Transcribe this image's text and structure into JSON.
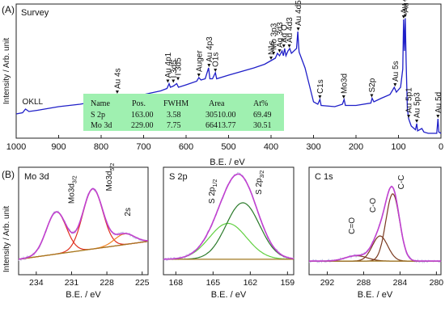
{
  "colors": {
    "survey": "#1f1fc8",
    "envelope": "#c040d0",
    "raw": "#c8c8e8",
    "baseline": "#a07820",
    "red": "#e03020",
    "orange": "#f08020",
    "darkgreen": "#2a7a2a",
    "lightgreen": "#60d040",
    "brown": "#7a3a20",
    "table_bg": "#9ff0b0"
  },
  "chart_data": [
    {
      "id": "A",
      "type": "line",
      "panel_label": "(A)",
      "title": "Survey",
      "xlabel": "B.E. / eV",
      "ylabel": "Intensity / Arb. unit",
      "xlim": [
        1000,
        0
      ],
      "xticks": [
        "1000",
        "900",
        "800",
        "700",
        "600",
        "500",
        "400",
        "300",
        "200",
        "100",
        "0"
      ],
      "series": [
        {
          "points": [
            [
              1000,
              0.18
            ],
            [
              985,
              0.19
            ],
            [
              978,
              0.22
            ],
            [
              970,
              0.2
            ],
            [
              950,
              0.21
            ],
            [
              900,
              0.24
            ],
            [
              850,
              0.26
            ],
            [
              800,
              0.29
            ],
            [
              770,
              0.3
            ],
            [
              762,
              0.34
            ],
            [
              755,
              0.31
            ],
            [
              700,
              0.34
            ],
            [
              660,
              0.37
            ],
            [
              645,
              0.39
            ],
            [
              640,
              0.43
            ],
            [
              637,
              0.4
            ],
            [
              630,
              0.41
            ],
            [
              622,
              0.43
            ],
            [
              618,
              0.4
            ],
            [
              600,
              0.42
            ],
            [
              575,
              0.45
            ],
            [
              570,
              0.48
            ],
            [
              565,
              0.46
            ],
            [
              555,
              0.47
            ],
            [
              547,
              0.56
            ],
            [
              544,
              0.47
            ],
            [
              538,
              0.47
            ],
            [
              531,
              0.52
            ],
            [
              528,
              0.47
            ],
            [
              500,
              0.5
            ],
            [
              470,
              0.53
            ],
            [
              440,
              0.56
            ],
            [
              415,
              0.59
            ],
            [
              400,
              0.62
            ],
            [
              390,
              0.64
            ],
            [
              385,
              0.68
            ],
            [
              380,
              0.66
            ],
            [
              374,
              0.7
            ],
            [
              371,
              0.66
            ],
            [
              368,
              0.72
            ],
            [
              365,
              0.66
            ],
            [
              360,
              0.7
            ],
            [
              356,
              0.72
            ],
            [
              352,
              0.68
            ],
            [
              340,
              0.72
            ],
            [
              337,
              0.86
            ],
            [
              335,
              0.74
            ],
            [
              334,
              0.69
            ],
            [
              320,
              0.56
            ],
            [
              300,
              0.28
            ],
            [
              290,
              0.26
            ],
            [
              285,
              0.3
            ],
            [
              282,
              0.25
            ],
            [
              250,
              0.24
            ],
            [
              232,
              0.26
            ],
            [
              228,
              0.3
            ],
            [
              225,
              0.25
            ],
            [
              200,
              0.25
            ],
            [
              165,
              0.27
            ],
            [
              162,
              0.31
            ],
            [
              158,
              0.28
            ],
            [
              140,
              0.31
            ],
            [
              120,
              0.34
            ],
            [
              110,
              0.4
            ],
            [
              105,
              0.36
            ],
            [
              95,
              0.4
            ],
            [
              90,
              0.55
            ],
            [
              88,
              0.96
            ],
            [
              86,
              0.7
            ],
            [
              84,
              0.97
            ],
            [
              82,
              0.6
            ],
            [
              79,
              0.22
            ],
            [
              76,
              0.14
            ],
            [
              72,
              0.1
            ],
            [
              70,
              0.08
            ],
            [
              60,
              0.05
            ],
            [
              57,
              0.1
            ],
            [
              55,
              0.04
            ],
            [
              45,
              0.06
            ],
            [
              40,
              0.03
            ],
            [
              30,
              0.02
            ],
            [
              20,
              0.02
            ],
            [
              10,
              0.02
            ],
            [
              7,
              0.14
            ],
            [
              5,
              0.03
            ],
            [
              0,
              0.02
            ]
          ]
        }
      ],
      "peak_labels": [
        {
          "text": "OKLL",
          "x": 978,
          "h": 0.22,
          "rotate": false
        },
        {
          "text": "Au 4s",
          "x": 762,
          "h": 0.34,
          "rotate": true
        },
        {
          "text": "Au 4p1",
          "x": 643,
          "h": 0.43,
          "rotate": true
        },
        {
          "text": "I 3d5",
          "x": 630,
          "h": 0.43,
          "rotate": true
        },
        {
          "text": "I 3d5",
          "x": 619,
          "h": 0.45,
          "rotate": true
        },
        {
          "text": "Auger",
          "x": 570,
          "h": 0.48,
          "rotate": true
        },
        {
          "text": "Au 4p3",
          "x": 546,
          "h": 0.56,
          "rotate": true
        },
        {
          "text": "O1s",
          "x": 531,
          "h": 0.52,
          "rotate": true
        },
        {
          "text": "N1s",
          "x": 400,
          "h": 0.62,
          "rotate": true
        },
        {
          "text": "Mo 3p3",
          "x": 394,
          "h": 0.66,
          "rotate": true
        },
        {
          "text": "Ag 3d3",
          "x": 380,
          "h": 0.68,
          "rotate": true
        },
        {
          "text": "Ag O",
          "x": 370,
          "h": 0.72,
          "rotate": true
        },
        {
          "text": "Au 4d3",
          "x": 357,
          "h": 0.72,
          "rotate": true
        },
        {
          "text": "Au 4d5",
          "x": 336,
          "h": 0.86,
          "rotate": true
        },
        {
          "text": "C1s",
          "x": 285,
          "h": 0.3,
          "rotate": true
        },
        {
          "text": "Mo3d",
          "x": 229,
          "h": 0.3,
          "rotate": true
        },
        {
          "text": "S2p",
          "x": 163,
          "h": 0.31,
          "rotate": true
        },
        {
          "text": "Au 5s",
          "x": 108,
          "h": 0.4,
          "rotate": true
        },
        {
          "text": "Au 4f5",
          "x": 88,
          "h": 0.96,
          "rotate": true
        },
        {
          "text": "Au 4f7",
          "x": 84,
          "h": 0.97,
          "rotate": true
        },
        {
          "text": "Au 5p1",
          "x": 76,
          "h": 0.14,
          "rotate": true
        },
        {
          "text": "Au 5p3",
          "x": 57,
          "h": 0.1,
          "rotate": true
        },
        {
          "text": "Au 5d",
          "x": 7,
          "h": 0.14,
          "rotate": true
        }
      ],
      "table": {
        "columns": [
          "Name",
          "Pos.",
          "FWHM",
          "Area",
          "At%"
        ],
        "rows": [
          [
            "S 2p",
            "163.00",
            "3.58",
            "30510.00",
            "69.49"
          ],
          [
            "Mo 3d",
            "229.00",
            "7.75",
            "66413.77",
            "30.51"
          ]
        ]
      }
    },
    {
      "id": "B1",
      "type": "line",
      "panel_label": "(B)",
      "title": "Mo 3d",
      "xlabel": "B.E. / eV",
      "ylabel": "Intensity / Arb. unit",
      "xlim": [
        235.5,
        224.5
      ],
      "xticks": [
        "234",
        "231",
        "228",
        "225"
      ],
      "baseline": [
        0.1,
        0.3
      ],
      "components": [
        {
          "name": "Mo3d3/2",
          "center": 232.3,
          "height": 0.47,
          "width": 0.85,
          "color": "red"
        },
        {
          "name": "Mo3d5/2",
          "center": 229.2,
          "height": 0.67,
          "width": 0.85,
          "color": "red"
        },
        {
          "name": "2s",
          "center": 226.5,
          "height": 0.12,
          "width": 0.85,
          "color": "orange"
        }
      ],
      "labels": [
        {
          "text": "Mo3d",
          "sub": "3/2",
          "x": 230.8,
          "y": 0.72
        },
        {
          "text": "Mo3d",
          "sub": "5/2",
          "x": 227.6,
          "y": 0.86
        },
        {
          "text": "2s",
          "sub": "",
          "x": 226.0,
          "y": 0.58
        }
      ]
    },
    {
      "id": "B2",
      "type": "line",
      "title": "S 2p",
      "xlabel": "B.E. / eV",
      "xlim": [
        169,
        158.5
      ],
      "xticks": [
        "168",
        "165",
        "162",
        "159"
      ],
      "baseline": [
        0.1,
        0.1
      ],
      "components": [
        {
          "name": "S 2p1/2",
          "center": 163.8,
          "height": 0.4,
          "width": 1.5,
          "color": "lightgreen"
        },
        {
          "name": "S 2p3/2",
          "center": 162.6,
          "height": 0.63,
          "width": 1.35,
          "color": "darkgreen"
        }
      ],
      "labels": [
        {
          "text": "S 2p",
          "sub": "1/2",
          "x": 164.9,
          "y": 0.72
        },
        {
          "text": "S 2p",
          "sub": "3/2",
          "x": 161.1,
          "y": 0.82
        }
      ]
    },
    {
      "id": "B3",
      "type": "line",
      "title": "C 1s",
      "xlabel": "B.E. / eV",
      "xlim": [
        294,
        279.5
      ],
      "xticks": [
        "292",
        "288",
        "284",
        "280"
      ],
      "baseline": [
        0.08,
        0.08
      ],
      "components": [
        {
          "name": "C=O",
          "center": 288.8,
          "height": 0.06,
          "width": 1.2,
          "color": "brown"
        },
        {
          "name": "C-O",
          "center": 286.2,
          "height": 0.28,
          "width": 0.85,
          "color": "brown"
        },
        {
          "name": "C-C",
          "center": 284.8,
          "height": 0.75,
          "width": 0.75,
          "color": "brown"
        }
      ],
      "labels": [
        {
          "text": "C=O",
          "sub": "",
          "x": 289.0,
          "y": 0.38
        },
        {
          "text": "C-O",
          "sub": "",
          "x": 286.7,
          "y": 0.62
        },
        {
          "text": "C-C",
          "sub": "",
          "x": 283.6,
          "y": 0.88
        }
      ]
    }
  ]
}
